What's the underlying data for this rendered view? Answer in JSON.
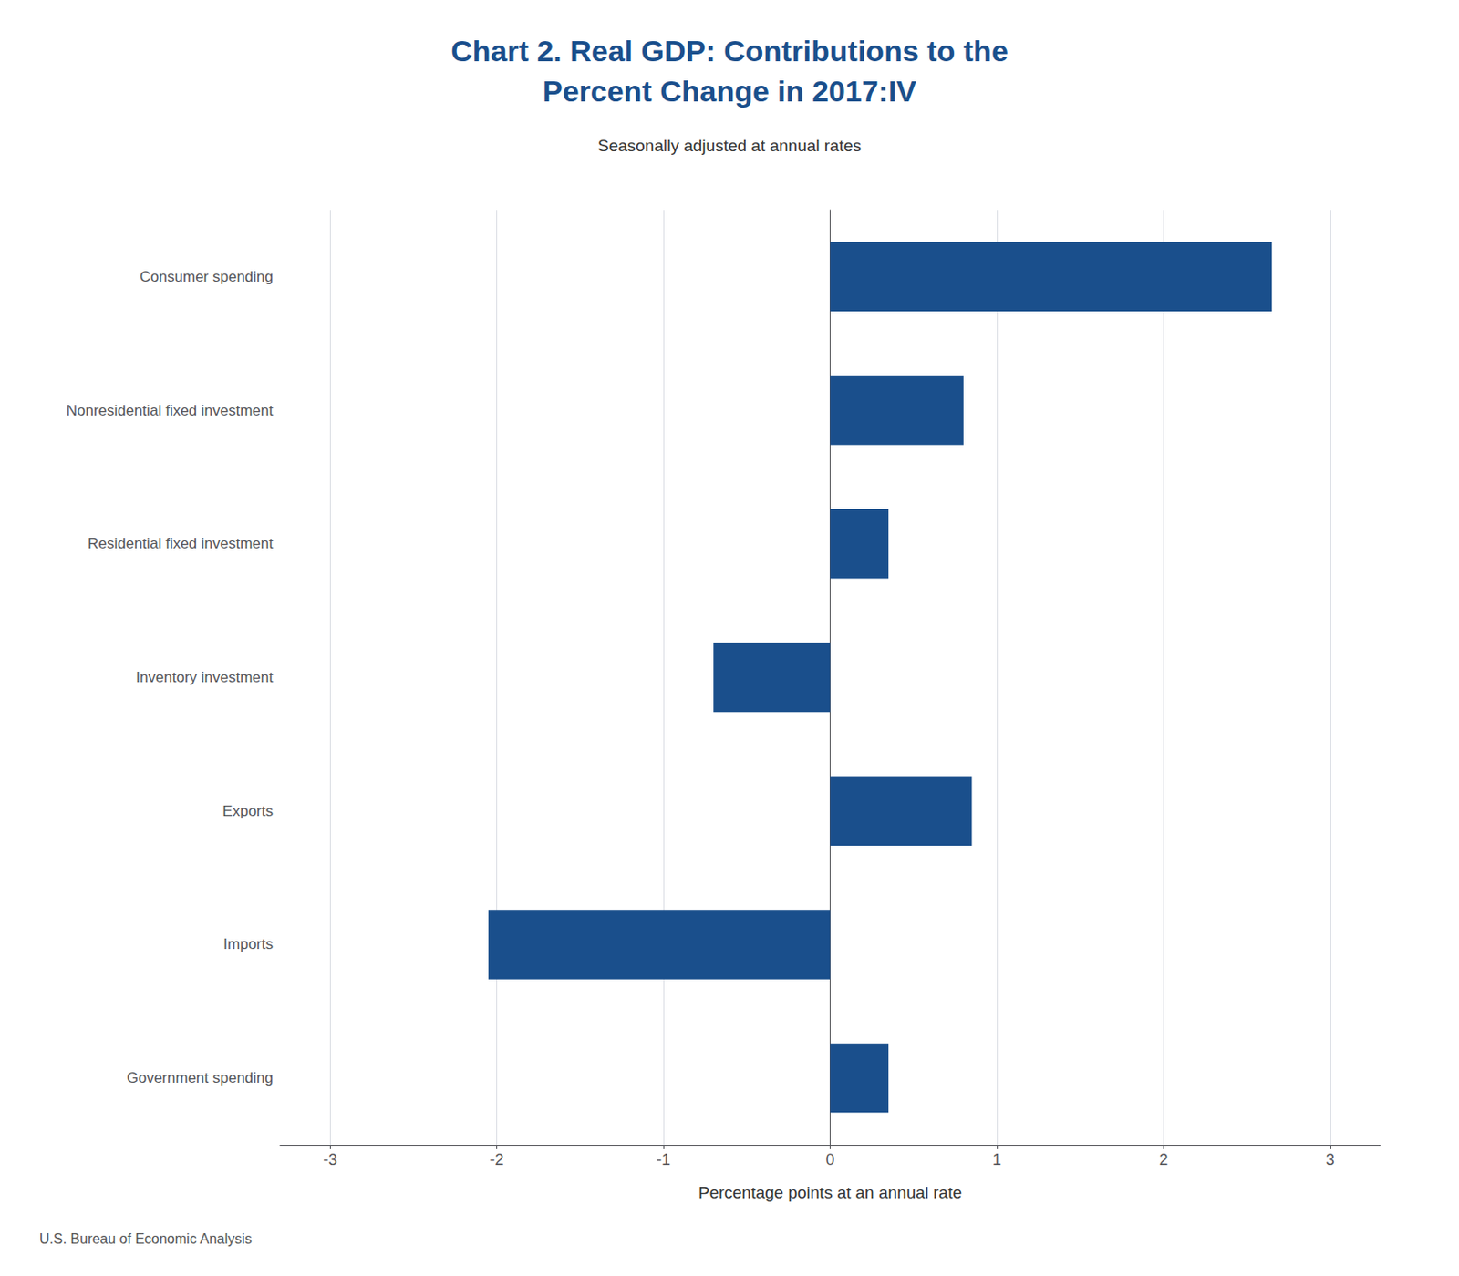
{
  "chart_data": {
    "type": "bar",
    "orientation": "horizontal",
    "title": "Chart 2. Real GDP: Contributions to the\nPercent Change in 2017:IV",
    "subtitle": "Seasonally adjusted at annual rates",
    "annotations": [
      "U.S. Bureau of Economic Analysis"
    ],
    "xlabel": "Percentage points at an annual rate",
    "categories": [
      "Consumer spending",
      "Nonresidential fixed investment",
      "Residential fixed investment",
      "Inventory investment",
      "Exports",
      "Imports",
      "Government spending"
    ],
    "values": [
      2.65,
      0.8,
      0.35,
      -0.7,
      0.85,
      -2.05,
      0.35
    ],
    "color": "#1A4F8C",
    "xlim": [
      -3.3,
      3.3
    ],
    "xticks": [
      -3,
      -2,
      -1,
      0,
      1,
      2,
      3
    ],
    "grid": true
  }
}
